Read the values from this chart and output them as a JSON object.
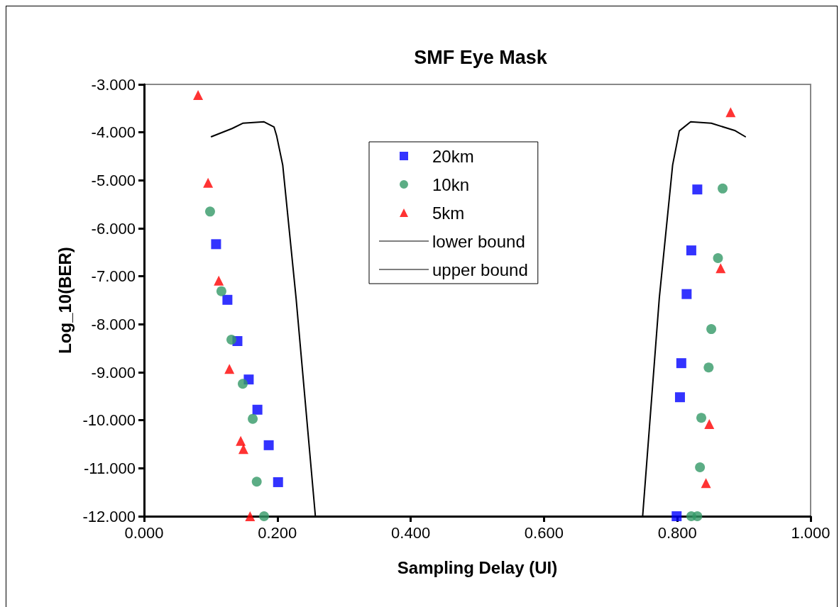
{
  "chart_data": {
    "type": "scatter",
    "title": "SMF Eye Mask",
    "xlabel": "Sampling Delay (UI)",
    "ylabel": "Log_10(BER)",
    "xlim": [
      0,
      1
    ],
    "xticks": [
      {
        "value": 0,
        "label": "0.000"
      },
      {
        "value": 0.2,
        "label": "0.200"
      },
      {
        "value": 0.4,
        "label": "0.400"
      },
      {
        "value": 0.6,
        "label": "0.600"
      },
      {
        "value": 0.8,
        "label": "0.800"
      },
      {
        "value": 1,
        "label": "1.000"
      }
    ],
    "ylim": [
      -12,
      -3
    ],
    "yticks": [
      {
        "value": -3,
        "label": "-3.000"
      },
      {
        "value": -4,
        "label": "-4.000"
      },
      {
        "value": -5,
        "label": "-5.000"
      },
      {
        "value": -6,
        "label": "-6.000"
      },
      {
        "value": -7,
        "label": "-7.000"
      },
      {
        "value": -8,
        "label": "-8.000"
      },
      {
        "value": -9,
        "label": "-9.000"
      },
      {
        "value": -10,
        "label": "-10.000"
      },
      {
        "value": -11,
        "label": "-11.000"
      },
      {
        "value": -12,
        "label": "-12.000"
      }
    ],
    "grid": false,
    "legend": "top",
    "series": [
      {
        "name": "20km",
        "marker": "square",
        "color": "#0000ff",
        "x": [
          0.108,
          0.125,
          0.14,
          0.157,
          0.17,
          0.187,
          0.201,
          0.83,
          0.821,
          0.814,
          0.806,
          0.804,
          0.799
        ],
        "values": [
          -6.33,
          -7.49,
          -8.35,
          -9.15,
          -9.78,
          -10.52,
          -11.29,
          -5.19,
          -6.46,
          -7.37,
          -8.81,
          -9.52,
          -12.0
        ]
      },
      {
        "name": "10kn",
        "marker": "circle",
        "color": "#339966",
        "x": [
          0.099,
          0.116,
          0.131,
          0.148,
          0.163,
          0.169,
          0.18,
          0.868,
          0.861,
          0.851,
          0.847,
          0.836,
          0.834,
          0.821,
          0.83
        ],
        "values": [
          -5.65,
          -7.31,
          -8.32,
          -9.24,
          -9.97,
          -11.28,
          -12.0,
          -5.17,
          -6.62,
          -8.1,
          -8.9,
          -9.95,
          -10.98,
          -12.0,
          -12.0
        ]
      },
      {
        "name": "5km",
        "marker": "triangle",
        "color": "#ff0000",
        "x": [
          0.081,
          0.096,
          0.112,
          0.128,
          0.145,
          0.149,
          0.159,
          0.88,
          0.865,
          0.848,
          0.843
        ],
        "values": [
          -3.22,
          -5.05,
          -7.09,
          -8.93,
          -10.43,
          -10.6,
          -12.0,
          -3.58,
          -6.83,
          -10.08,
          -11.31
        ]
      },
      {
        "name": "lower bound",
        "type": "line",
        "marker": "none",
        "color": "#000000",
        "x": [
          0.101,
          0.132,
          0.148,
          0.18,
          0.195,
          0.199,
          0.208,
          0.228,
          0.257
        ],
        "values": [
          -4.09,
          -3.92,
          -3.81,
          -3.78,
          -3.89,
          -4.08,
          -4.68,
          -7.45,
          -12.0
        ]
      },
      {
        "name": "upper bound",
        "type": "line",
        "marker": "none",
        "color": "#000000",
        "x": [
          0.748,
          0.773,
          0.793,
          0.803,
          0.82,
          0.851,
          0.886,
          0.902
        ],
        "values": [
          -12.0,
          -7.45,
          -4.68,
          -3.97,
          -3.78,
          -3.81,
          -3.96,
          -4.09
        ]
      }
    ]
  }
}
